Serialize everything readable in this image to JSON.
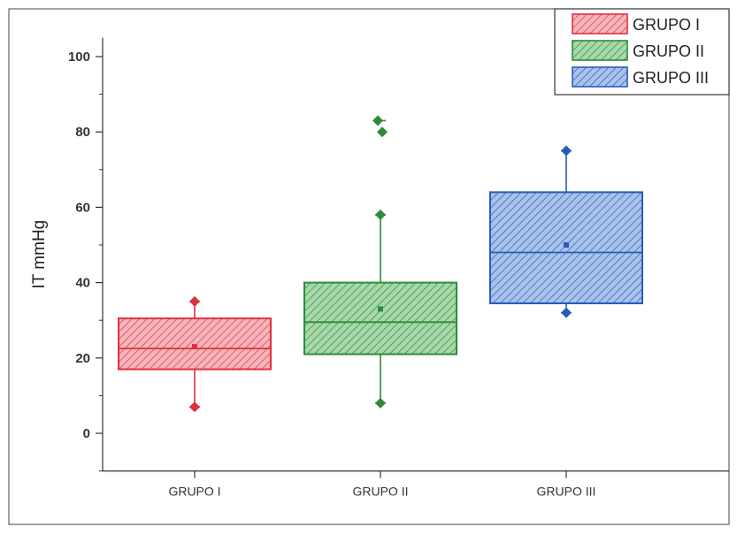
{
  "chart_data": {
    "type": "box",
    "ylabel": "IT mmHg",
    "xlabel": "",
    "ylim": [
      -10,
      105
    ],
    "yticks": [
      0,
      20,
      40,
      60,
      80,
      100
    ],
    "y_tick_labels": [
      "0",
      "20",
      "40",
      "60",
      "80",
      "100"
    ],
    "categories": [
      "GRUPO I",
      "GRUPO II",
      "GRUPO III"
    ],
    "legend": {
      "placement": "top-right",
      "entries": [
        "GRUPO I",
        "GRUPO II",
        "GRUPO III"
      ]
    },
    "series": [
      {
        "name": "GRUPO I",
        "color": "#e0303f",
        "fill": "#f4b5bb",
        "box": {
          "q1": 17,
          "median": 22.5,
          "q3": 30.5,
          "mean": 23,
          "whisker_low": 7,
          "whisker_high": 35
        },
        "whisker_markers": [
          7,
          35
        ],
        "outliers": []
      },
      {
        "name": "GRUPO II",
        "color": "#2e8b3a",
        "fill": "#a9d8ac",
        "box": {
          "q1": 21,
          "median": 29.5,
          "q3": 40,
          "mean": 33,
          "whisker_low": 8,
          "whisker_high": 58
        },
        "whisker_markers": [
          8,
          58
        ],
        "outliers": [
          83,
          80
        ]
      },
      {
        "name": "GRUPO III",
        "color": "#2a5bb8",
        "fill": "#a9c3ea",
        "box": {
          "q1": 34.5,
          "median": 48,
          "q3": 64,
          "mean": 50,
          "whisker_low": 32,
          "whisker_high": 75
        },
        "whisker_markers": [
          32,
          75
        ],
        "outliers": []
      }
    ]
  }
}
